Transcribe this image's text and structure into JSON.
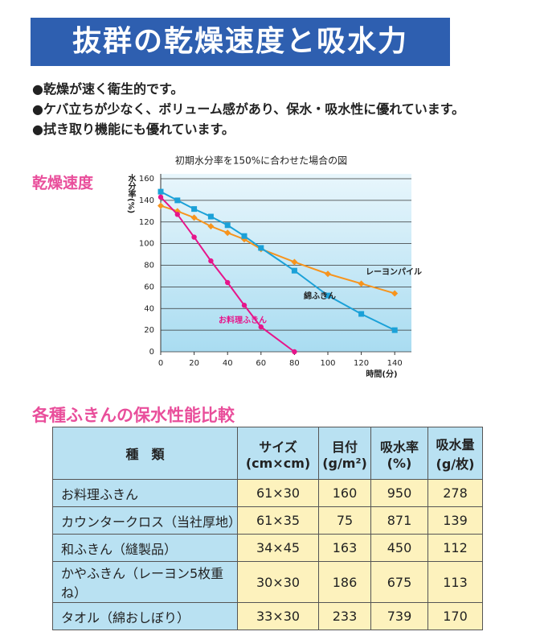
{
  "header": {
    "title": "抜群の乾燥速度と吸水力"
  },
  "bullets": [
    "●乾燥が速く衛生的です。",
    "●ケバ立ちが少なく、ボリューム感があり、保水・吸水性に優れています。",
    "●拭き取り機能にも優れています。"
  ],
  "chart_data": {
    "type": "line",
    "section_title": "乾燥速度",
    "title": "初期水分率を150%に合わせた場合の図",
    "x": [
      0,
      10,
      20,
      30,
      40,
      50,
      60,
      80,
      100,
      120,
      140
    ],
    "series": [
      {
        "name": "レーヨンパイル",
        "color": "#f7941d",
        "marker": "diamond",
        "values": [
          135,
          130,
          124,
          116,
          110,
          104,
          95,
          83,
          72,
          63,
          54
        ]
      },
      {
        "name": "綿ふきん",
        "color": "#1ba1d8",
        "marker": "square",
        "values": [
          148,
          140,
          132,
          125,
          117,
          107,
          96,
          75,
          52,
          35,
          20
        ]
      },
      {
        "name": "お料理ふきん",
        "color": "#e6158a",
        "marker": "circle",
        "values": [
          143,
          127,
          106,
          84,
          64,
          43,
          23,
          0,
          null,
          null,
          null
        ]
      }
    ],
    "xlim": [
      0,
      150
    ],
    "ylim": [
      0,
      160
    ],
    "xticks": [
      0,
      20,
      40,
      60,
      80,
      100,
      120,
      140
    ],
    "yticks": [
      0,
      20,
      40,
      60,
      80,
      100,
      120,
      140,
      160
    ],
    "xlabel": "時間(分)",
    "ylabel": "水分率(%)",
    "grid": true
  },
  "table": {
    "title": "各種ふきんの保水性能比較",
    "header": [
      [
        "種　類"
      ],
      [
        "サイズ",
        "(cm×cm)"
      ],
      [
        "目付",
        "(g/m²)"
      ],
      [
        "吸水率",
        "(%)"
      ],
      [
        "吸水量",
        "(g/枚)"
      ]
    ],
    "rows": [
      [
        "お料理ふきん",
        "61×30",
        160,
        950,
        278
      ],
      [
        "カウンタークロス（当社厚地）",
        "61×35",
        75,
        871,
        139
      ],
      [
        "和ふきん（縫製品）",
        "34×45",
        163,
        450,
        112
      ],
      [
        "かやふきん（レーヨン5枚重ね）",
        "30×30",
        186,
        675,
        113
      ],
      [
        "タオル（綿おしぼり）",
        "33×30",
        233,
        739,
        170
      ]
    ]
  }
}
